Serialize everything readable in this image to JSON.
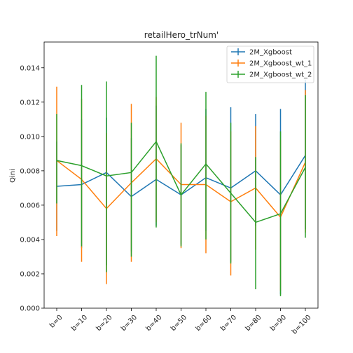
{
  "chart_data": {
    "type": "line",
    "title": "retailHero_trNum'",
    "xlabel": "",
    "ylabel": "Qini",
    "categories": [
      "b=0",
      "b=10",
      "b=20",
      "b=30",
      "b=40",
      "b=50",
      "b=60",
      "b=70",
      "b=80",
      "b=90",
      "b=100"
    ],
    "ylim": [
      0.0,
      0.0155
    ],
    "yticks": [
      0.0,
      0.002,
      0.004,
      0.006,
      0.008,
      0.01,
      0.012,
      0.014
    ],
    "ytick_labels": [
      "0.000",
      "0.002",
      "0.004",
      "0.006",
      "0.008",
      "0.010",
      "0.012",
      "0.014"
    ],
    "grid": false,
    "legend_position": "top-right",
    "error_bars": true,
    "series": [
      {
        "name": "2M_Xgboost",
        "color": "#1f77b4",
        "values": [
          0.0071,
          0.0072,
          0.0079,
          0.0065,
          0.0075,
          0.0066,
          0.0076,
          0.007,
          0.008,
          0.0066,
          0.0089
        ],
        "err_low": [
          0.0045,
          0.0035,
          0.0025,
          0.0033,
          0.0048,
          0.0037,
          0.0045,
          0.0027,
          0.0048,
          0.0008,
          0.0046
        ],
        "err_high": [
          0.0097,
          0.011,
          0.0111,
          0.0099,
          0.0118,
          0.0095,
          0.0116,
          0.0117,
          0.0113,
          0.0116,
          0.0133
        ]
      },
      {
        "name": "2M_Xgboost_wt_1",
        "color": "#ff7f0e",
        "values": [
          0.0086,
          0.0075,
          0.0058,
          0.0073,
          0.0087,
          0.0072,
          0.0072,
          0.0062,
          0.007,
          0.0053,
          0.0085
        ],
        "err_low": [
          0.0042,
          0.0027,
          0.0014,
          0.0027,
          0.005,
          0.0035,
          0.0032,
          0.0019,
          0.0034,
          0.001,
          0.0044
        ],
        "err_high": [
          0.0129,
          0.0122,
          0.0102,
          0.0119,
          0.0123,
          0.0108,
          0.0112,
          0.0103,
          0.0106,
          0.0098,
          0.0127
        ]
      },
      {
        "name": "2M_Xgboost_wt_2",
        "color": "#2ca02c",
        "values": [
          0.0086,
          0.0083,
          0.0077,
          0.0079,
          0.0097,
          0.0066,
          0.0084,
          0.0067,
          0.005,
          0.0055,
          0.0082
        ],
        "err_low": [
          0.0061,
          0.0036,
          0.0021,
          0.003,
          0.0047,
          0.0036,
          0.004,
          0.0026,
          0.0011,
          0.0007,
          0.0041
        ],
        "err_high": [
          0.0113,
          0.013,
          0.0132,
          0.0108,
          0.0147,
          0.0096,
          0.0126,
          0.0108,
          0.0088,
          0.0103,
          0.0124
        ]
      }
    ]
  }
}
